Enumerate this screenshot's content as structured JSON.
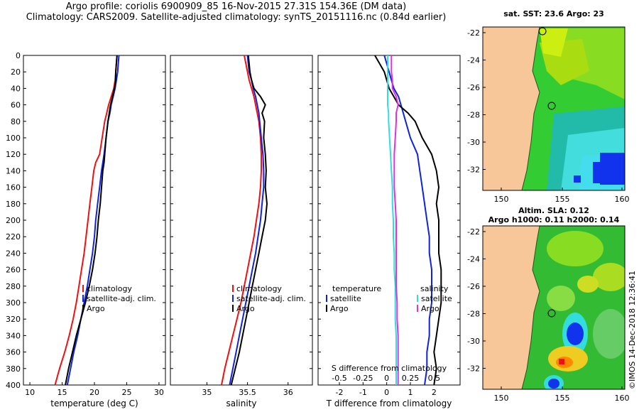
{
  "header": {
    "line1": "Argo profile: coriolis 6900909_85 16-Nov-2015 27.31S 154.36E (DM data)",
    "line2": "Climatology: CARS2009. Satellite-adjusted climatology: synTS_20151116.nc (0.84d earlier)"
  },
  "map_top": {
    "title": "sat. SST: 23.6 Argo: 23",
    "yticks": [
      "-22",
      "-24",
      "-26",
      "-28",
      "-30",
      "-32"
    ],
    "xticks": [
      "150",
      "155",
      "160"
    ]
  },
  "map_bottom": {
    "title1": "Altim. SLA: 0.12",
    "title2": "Argo h1000: 0.11 h2000: 0.14",
    "yticks": [
      "-22",
      "-24",
      "-26",
      "-28",
      "-30",
      "-32"
    ],
    "xticks": [
      "150",
      "155",
      "160"
    ]
  },
  "stamp": "©IMOS 14-Dec-2018 12:36:41",
  "colors": {
    "climatology": "#ee1111",
    "satellite": "#1122dd",
    "argo": "#000000",
    "sal_sat": "#33dddd",
    "sal_argo": "#dd33dd"
  },
  "chart_data": [
    {
      "type": "line",
      "xlabel": "temperature (deg C)",
      "ylabel": "",
      "xlim": [
        9,
        31
      ],
      "ylim": [
        400,
        0
      ],
      "xticks": [
        "10",
        "15",
        "20",
        "25",
        "30"
      ],
      "yticks": [
        "0",
        "20",
        "40",
        "60",
        "80",
        "100",
        "120",
        "140",
        "160",
        "180",
        "200",
        "220",
        "240",
        "260",
        "280",
        "300",
        "320",
        "340",
        "360",
        "380",
        "400"
      ],
      "legend": [
        "climatology",
        "satellite-adj. clim.",
        "Argo"
      ],
      "depth": [
        0,
        10,
        20,
        30,
        40,
        50,
        60,
        70,
        80,
        100,
        120,
        130,
        140,
        160,
        180,
        200,
        220,
        240,
        260,
        280,
        300,
        320,
        340,
        360,
        380,
        400
      ],
      "series": [
        {
          "name": "climatology",
          "values": [
            23.5,
            23.4,
            23.3,
            23.2,
            23.0,
            22.6,
            22.2,
            21.9,
            21.6,
            21.2,
            20.8,
            20.2,
            19.9,
            19.6,
            19.3,
            19.0,
            18.7,
            18.4,
            18.0,
            17.6,
            17.2,
            16.7,
            16.1,
            15.4,
            14.6,
            13.9
          ]
        },
        {
          "name": "satellite-adj. clim.",
          "values": [
            23.8,
            23.7,
            23.6,
            23.4,
            23.2,
            22.9,
            22.6,
            22.4,
            22.1,
            21.8,
            21.5,
            21.3,
            21.1,
            20.8,
            20.5,
            20.2,
            20.0,
            19.7,
            19.3,
            18.9,
            18.4,
            17.9,
            17.4,
            16.8,
            16.3,
            15.8
          ]
        },
        {
          "name": "Argo",
          "values": [
            23.5,
            23.4,
            23.3,
            23.3,
            23.1,
            22.8,
            22.5,
            22.3,
            22.1,
            21.8,
            21.6,
            21.5,
            21.3,
            21.1,
            20.9,
            20.6,
            20.4,
            20.1,
            19.7,
            19.2,
            18.6,
            17.9,
            17.2,
            16.6,
            16.0,
            15.5
          ]
        }
      ]
    },
    {
      "type": "line",
      "xlabel": "salinity",
      "xlim": [
        34.55,
        36.3
      ],
      "ylim": [
        400,
        0
      ],
      "xticks": [
        "35",
        "35.5",
        "36"
      ],
      "legend": [
        "climatology",
        "satellite-adj. clim.",
        "Argo"
      ],
      "depth": [
        0,
        10,
        20,
        30,
        40,
        50,
        60,
        70,
        80,
        100,
        120,
        140,
        160,
        180,
        200,
        220,
        240,
        260,
        280,
        300,
        320,
        340,
        360,
        380,
        400
      ],
      "series": [
        {
          "name": "climatology",
          "values": [
            35.46,
            35.48,
            35.5,
            35.52,
            35.55,
            35.58,
            35.6,
            35.62,
            35.64,
            35.66,
            35.67,
            35.67,
            35.66,
            35.64,
            35.61,
            35.58,
            35.54,
            35.5,
            35.46,
            35.42,
            35.37,
            35.32,
            35.27,
            35.22,
            35.18
          ]
        },
        {
          "name": "satellite-adj. clim.",
          "values": [
            35.5,
            35.51,
            35.52,
            35.55,
            35.57,
            35.6,
            35.62,
            35.64,
            35.65,
            35.67,
            35.69,
            35.7,
            35.7,
            35.68,
            35.66,
            35.63,
            35.6,
            35.56,
            35.52,
            35.48,
            35.44,
            35.4,
            35.36,
            35.32,
            35.28
          ]
        },
        {
          "name": "Argo",
          "values": [
            35.51,
            35.52,
            35.53,
            35.55,
            35.58,
            35.66,
            35.72,
            35.68,
            35.71,
            35.7,
            35.72,
            35.73,
            35.72,
            35.74,
            35.72,
            35.68,
            35.64,
            35.6,
            35.56,
            35.52,
            35.48,
            35.44,
            35.4,
            35.35,
            35.3
          ]
        }
      ]
    },
    {
      "type": "line",
      "xlabel": "T difference from climatology",
      "secondary_xlabel": "S difference from climatology",
      "xlim": [
        -2.9,
        3.1
      ],
      "secondary_xlim": [
        -0.725,
        0.775
      ],
      "ylim": [
        400,
        0
      ],
      "xticks": [
        "-2",
        "-1",
        "0",
        "1",
        "2"
      ],
      "secondary_xticks": [
        "-0.5",
        "-0.25",
        "0",
        "0.25",
        "0.5"
      ],
      "legend_temperature": [
        "temperature",
        "satellite",
        "Argo"
      ],
      "legend_salinity": [
        "salinity",
        "satellite",
        "Argo"
      ],
      "depth": [
        0,
        10,
        20,
        30,
        40,
        50,
        60,
        70,
        80,
        100,
        120,
        140,
        160,
        180,
        200,
        220,
        240,
        260,
        280,
        300,
        320,
        340,
        360,
        380,
        400
      ],
      "series": [
        {
          "name": "temperature satellite",
          "axis": "T",
          "values": [
            -0.1,
            0.0,
            0.1,
            0.2,
            0.3,
            0.5,
            0.6,
            0.7,
            0.8,
            1.0,
            1.3,
            1.4,
            1.5,
            1.6,
            1.7,
            1.8,
            1.8,
            1.9,
            1.9,
            1.9,
            1.8,
            1.8,
            1.7,
            1.7,
            1.6
          ]
        },
        {
          "name": "temperature Argo",
          "axis": "T",
          "values": [
            -0.5,
            -0.3,
            -0.1,
            0.0,
            0.1,
            0.3,
            0.5,
            0.9,
            1.2,
            1.5,
            1.9,
            2.1,
            2.2,
            2.1,
            2.2,
            2.2,
            2.2,
            2.3,
            2.3,
            2.3,
            2.2,
            2.1,
            2.0,
            2.1,
            2.0
          ]
        },
        {
          "name": "salinity satellite",
          "axis": "S",
          "values": [
            0.01,
            0.01,
            0.01,
            0.01,
            0.01,
            0.01,
            0.01,
            0.02,
            0.02,
            0.03,
            0.04,
            0.05,
            0.06,
            0.06,
            0.07,
            0.07,
            0.08,
            0.08,
            0.09,
            0.09,
            0.09,
            0.1,
            0.1,
            0.1,
            0.1
          ]
        },
        {
          "name": "salinity Argo",
          "axis": "S",
          "values": [
            0.05,
            0.05,
            0.05,
            0.06,
            0.06,
            0.1,
            0.12,
            0.1,
            0.1,
            0.09,
            0.08,
            0.08,
            0.08,
            0.09,
            0.1,
            0.1,
            0.1,
            0.1,
            0.1,
            0.11,
            0.11,
            0.12,
            0.12,
            0.12,
            0.12
          ]
        }
      ]
    }
  ]
}
